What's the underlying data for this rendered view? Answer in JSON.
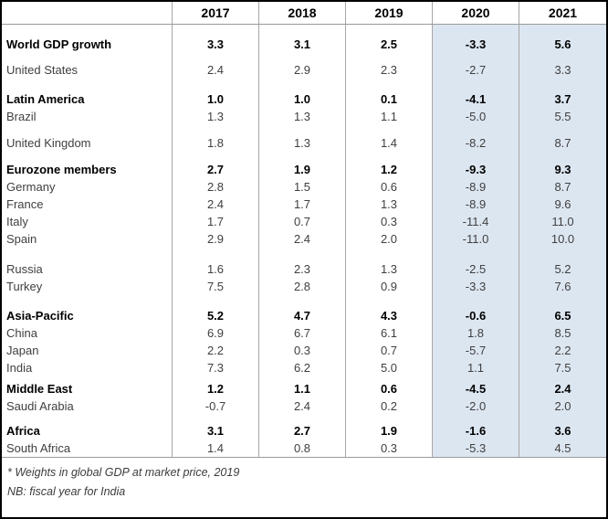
{
  "chart_data": {
    "type": "table",
    "title": "",
    "columns": [
      "2017",
      "2018",
      "2019",
      "2020",
      "2021"
    ],
    "highlighted_columns": [
      "2020",
      "2021"
    ],
    "highlight_color": "#dce6f1",
    "groups": [
      {
        "rows": [
          {
            "label": "World GDP growth",
            "emphasis": true,
            "values": [
              3.3,
              3.1,
              2.5,
              -3.3,
              5.6
            ]
          }
        ]
      },
      {
        "rows": [
          {
            "label": "United States",
            "emphasis": false,
            "values": [
              2.4,
              2.9,
              2.3,
              -2.7,
              3.3
            ]
          }
        ]
      },
      {
        "rows": [
          {
            "label": "Latin America",
            "emphasis": true,
            "values": [
              1.0,
              1.0,
              0.1,
              -4.1,
              3.7
            ]
          },
          {
            "label": "Brazil",
            "emphasis": false,
            "values": [
              1.3,
              1.3,
              1.1,
              -5.0,
              5.5
            ]
          }
        ]
      },
      {
        "rows": [
          {
            "label": "United Kingdom",
            "emphasis": false,
            "values": [
              1.8,
              1.3,
              1.4,
              -8.2,
              8.7
            ]
          }
        ]
      },
      {
        "rows": [
          {
            "label": "Eurozone members",
            "emphasis": true,
            "values": [
              2.7,
              1.9,
              1.2,
              -9.3,
              9.3
            ]
          },
          {
            "label": "Germany",
            "emphasis": false,
            "values": [
              2.8,
              1.5,
              0.6,
              -8.9,
              8.7
            ]
          },
          {
            "label": "France",
            "emphasis": false,
            "values": [
              2.4,
              1.7,
              1.3,
              -8.9,
              9.6
            ]
          },
          {
            "label": "Italy",
            "emphasis": false,
            "values": [
              1.7,
              0.7,
              0.3,
              -11.4,
              11.0
            ]
          },
          {
            "label": "Spain",
            "emphasis": false,
            "values": [
              2.9,
              2.4,
              2.0,
              -11.0,
              10.0
            ]
          }
        ]
      },
      {
        "rows": [
          {
            "label": "Russia",
            "emphasis": false,
            "values": [
              1.6,
              2.3,
              1.3,
              -2.5,
              5.2
            ]
          },
          {
            "label": "Turkey",
            "emphasis": false,
            "values": [
              7.5,
              2.8,
              0.9,
              -3.3,
              7.6
            ]
          }
        ]
      },
      {
        "rows": [
          {
            "label": "Asia-Pacific",
            "emphasis": true,
            "values": [
              5.2,
              4.7,
              4.3,
              -0.6,
              6.5
            ]
          },
          {
            "label": "China",
            "emphasis": false,
            "values": [
              6.9,
              6.7,
              6.1,
              1.8,
              8.5
            ]
          },
          {
            "label": "Japan",
            "emphasis": false,
            "values": [
              2.2,
              0.3,
              0.7,
              -5.7,
              2.2
            ]
          },
          {
            "label": "India",
            "emphasis": false,
            "values": [
              7.3,
              6.2,
              5.0,
              1.1,
              7.5
            ]
          }
        ]
      },
      {
        "rows": [
          {
            "label": "Middle East",
            "emphasis": true,
            "values": [
              1.2,
              1.1,
              0.6,
              -4.5,
              2.4
            ]
          },
          {
            "label": "Saudi Arabia",
            "emphasis": false,
            "values": [
              -0.7,
              2.4,
              0.2,
              -2.0,
              2.0
            ]
          }
        ]
      },
      {
        "rows": [
          {
            "label": "Africa",
            "emphasis": true,
            "values": [
              3.1,
              2.7,
              1.9,
              -1.6,
              3.6
            ]
          },
          {
            "label": "South Africa",
            "emphasis": false,
            "values": [
              1.4,
              0.8,
              0.3,
              -5.3,
              4.5
            ]
          }
        ]
      }
    ],
    "notes": [
      "* Weights in global GDP at market price, 2019",
      "NB: fiscal year for India"
    ]
  },
  "notes": [
    "* Weights in global GDP at market price, 2019",
    "NB: fiscal year for India"
  ]
}
